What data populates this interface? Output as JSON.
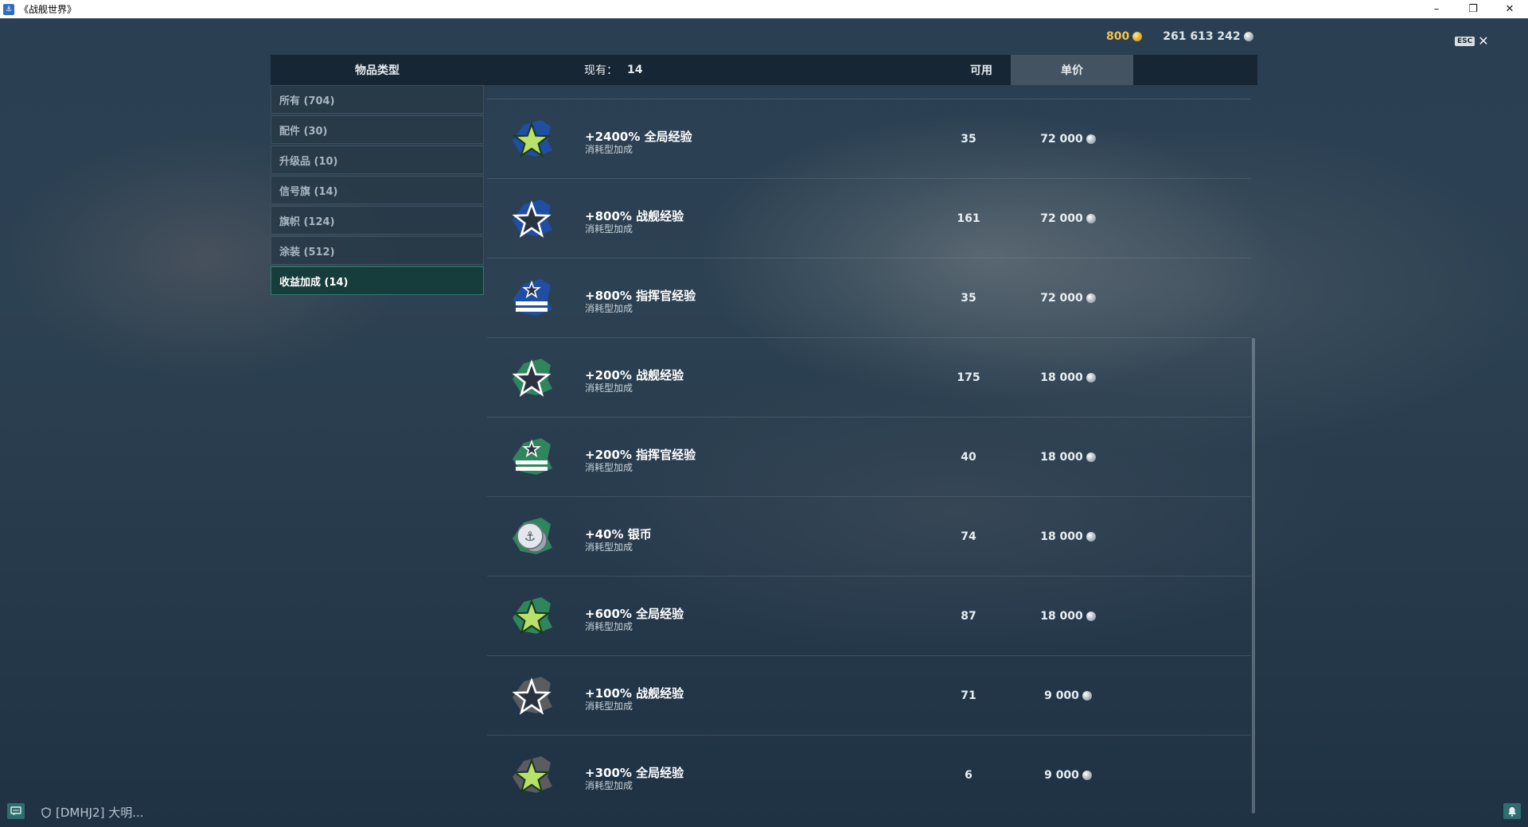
{
  "window": {
    "title": "《战舰世界》",
    "minimize": "–",
    "restore": "❐",
    "close": "✕"
  },
  "currency": {
    "gold": "800",
    "silver": "261 613 242"
  },
  "esc": {
    "key": "ESC",
    "close": "✕"
  },
  "header": {
    "category": "物品类型",
    "owned_label": "现有：",
    "owned_value": "14",
    "available": "可用",
    "unit_price": "单价"
  },
  "categories": [
    {
      "label": "所有 (704)",
      "active": false
    },
    {
      "label": "配件 (30)",
      "active": false
    },
    {
      "label": "升级品 (10)",
      "active": false
    },
    {
      "label": "信号旗 (14)",
      "active": false
    },
    {
      "label": "旗帜 (124)",
      "active": false
    },
    {
      "label": "涂装 (512)",
      "active": false
    },
    {
      "label": "收益加成 (14)",
      "active": true
    }
  ],
  "items": [
    {
      "name": "+2400% 全局经验",
      "type": "消耗型加成",
      "available": "35",
      "price": "72 000",
      "icon": "star-green-icon",
      "accent": "#1f4fa8"
    },
    {
      "name": "+800% 战舰经验",
      "type": "消耗型加成",
      "available": "161",
      "price": "72 000",
      "icon": "star-outline-icon",
      "accent": "#1f4fa8"
    },
    {
      "name": "+800% 指挥官经验",
      "type": "消耗型加成",
      "available": "35",
      "price": "72 000",
      "icon": "commander-icon",
      "accent": "#1f4fa8"
    },
    {
      "name": "+200% 战舰经验",
      "type": "消耗型加成",
      "available": "175",
      "price": "18 000",
      "icon": "star-outline-icon",
      "accent": "#2f8a5e"
    },
    {
      "name": "+200% 指挥官经验",
      "type": "消耗型加成",
      "available": "40",
      "price": "18 000",
      "icon": "commander-icon",
      "accent": "#2f8a5e"
    },
    {
      "name": "+40% 银币",
      "type": "消耗型加成",
      "available": "74",
      "price": "18 000",
      "icon": "silver-coin-icon",
      "accent": "#2f8a5e"
    },
    {
      "name": "+600% 全局经验",
      "type": "消耗型加成",
      "available": "87",
      "price": "18 000",
      "icon": "star-green-icon",
      "accent": "#2f8a5e"
    },
    {
      "name": "+100% 战舰经验",
      "type": "消耗型加成",
      "available": "71",
      "price": "9 000",
      "icon": "star-outline-icon",
      "accent": "#5d5f63"
    },
    {
      "name": "+300% 全局经验",
      "type": "消耗型加成",
      "available": "6",
      "price": "9 000",
      "icon": "star-green-icon",
      "accent": "#5d5f63"
    }
  ],
  "footer": {
    "player": "[DMHJ2]  大明..."
  },
  "colors": {
    "gold": "#f2c14e",
    "active_category": "#173c3c",
    "accent_blue": "#1f4fa8",
    "accent_green": "#2f8a5e",
    "accent_gray": "#5d5f63"
  }
}
